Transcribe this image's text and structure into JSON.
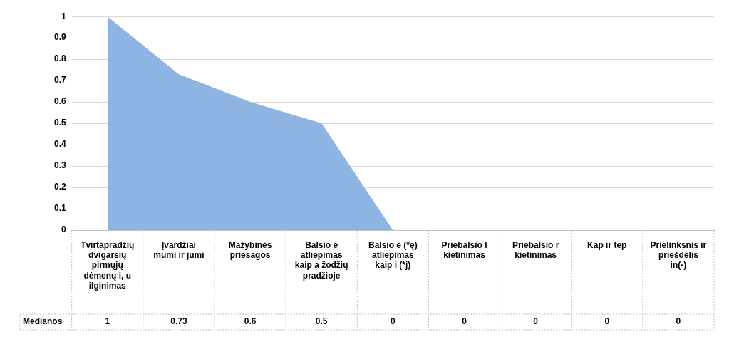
{
  "chart_data": {
    "type": "area",
    "categories": [
      "Tvirtapradžių dvigarsių pirmųjų dėmenų i, u ilginimas",
      "Įvardžiai mumi ir jumi",
      "Mažybinės priesagos",
      "Balsio e atliepimas kaip a žodžių pradžioje",
      "Balsio e (*ę) atliepimas kaip i (*j)",
      "Priebalsio l kietinimas",
      "Priebalsio r kietinimas",
      "Kap ir tep",
      "Prielinksnis ir priešdėlis in(-)"
    ],
    "series": [
      {
        "name": "Medianos",
        "color": "#8db4e2",
        "values": [
          1,
          0.73,
          0.6,
          0.5,
          0,
          0,
          0,
          0,
          0
        ]
      }
    ],
    "ylim": [
      0,
      1
    ],
    "yticks": [
      0,
      0.1,
      0.2,
      0.3,
      0.4,
      0.5,
      0.6,
      0.7,
      0.8,
      0.9,
      1
    ],
    "grid": "y",
    "legend": false,
    "data_labels": true
  }
}
